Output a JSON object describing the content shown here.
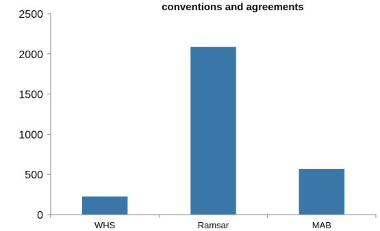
{
  "chart_data": {
    "type": "bar",
    "title": "conventions and agreements",
    "xlabel": "",
    "ylabel": "",
    "categories": [
      "WHS",
      "Ramsar",
      "MAB"
    ],
    "values": [
      225,
      2085,
      570
    ],
    "ylim": [
      0,
      2500
    ],
    "yticks": [
      0,
      500,
      1000,
      1500,
      2000,
      2500
    ],
    "ytick_labels": [
      "0",
      "500",
      "1000",
      "1500",
      "2000",
      "2500"
    ],
    "grid": false,
    "legend": "none",
    "bar_color": "#3a77a8",
    "axis_color": "#808080"
  }
}
